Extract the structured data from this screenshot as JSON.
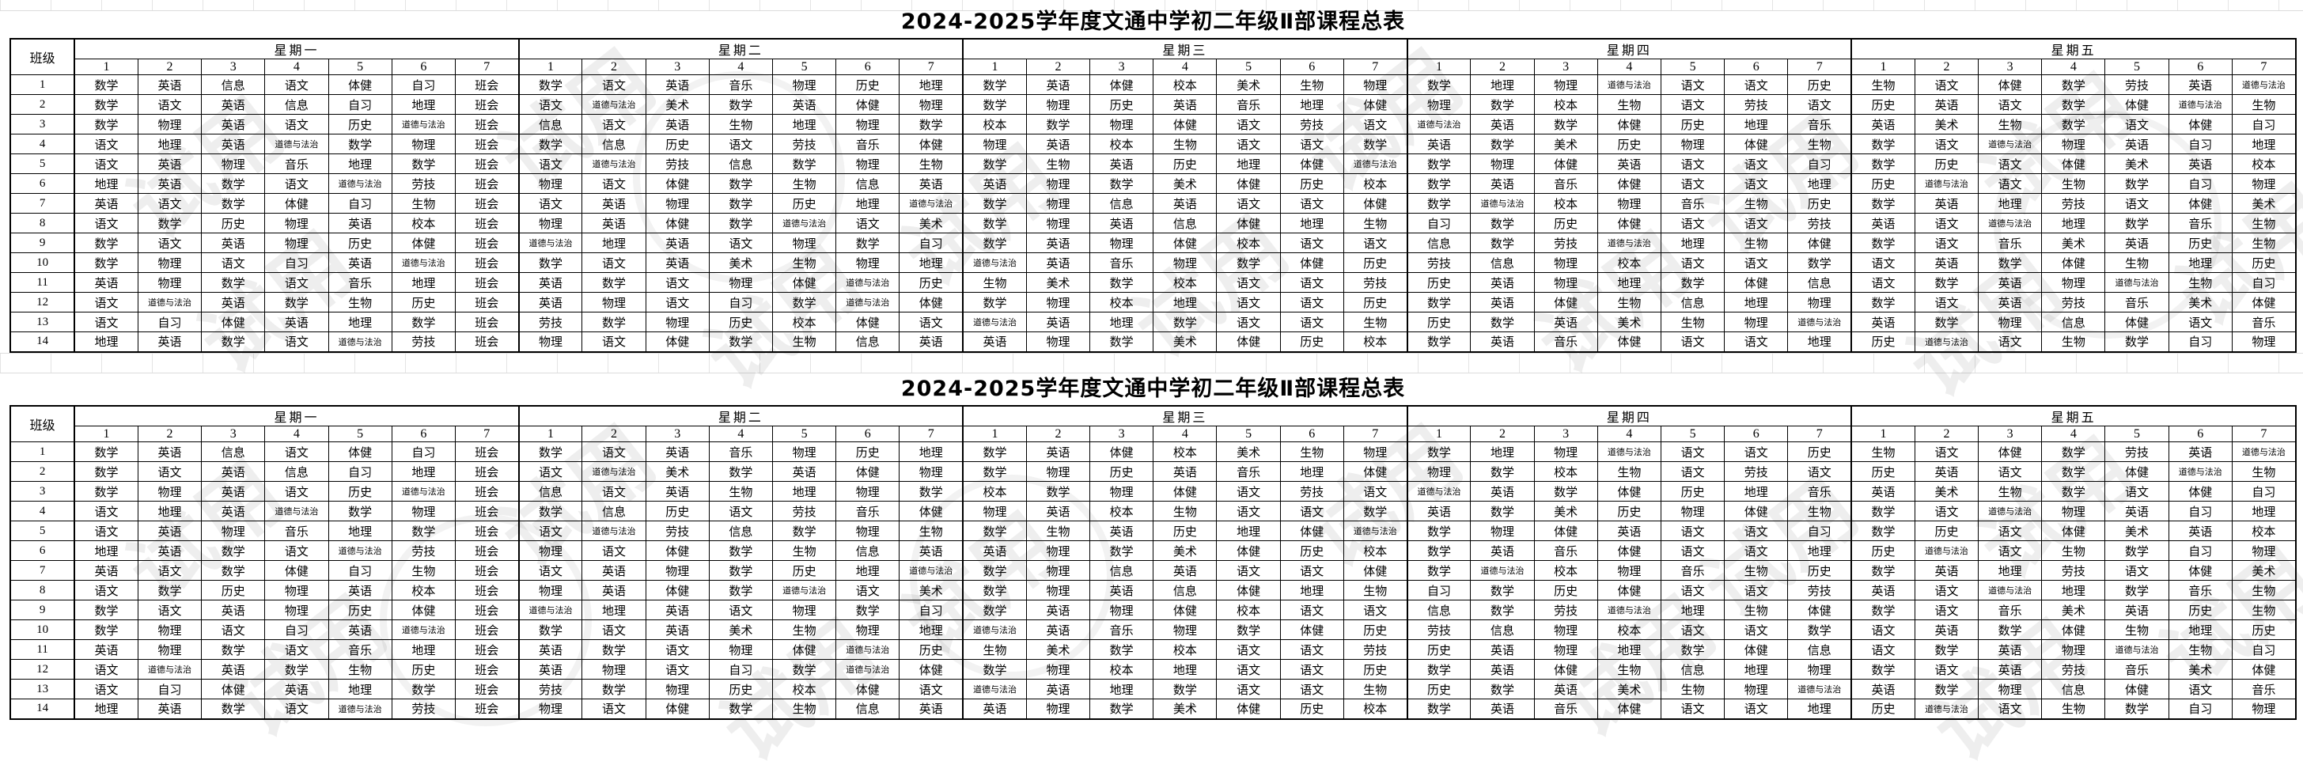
{
  "watermark_text": "试用",
  "tables": [
    {
      "title": "2024-2025学年度文通中学初二年级Ⅱ部课程总表"
    },
    {
      "title": "2024-2025学年度文通中学初二年级Ⅱ部课程总表"
    }
  ],
  "schedule": {
    "class_col_header": "班级",
    "days": [
      "星期一",
      "星期二",
      "星期三",
      "星期四",
      "星期五"
    ],
    "periods": [
      "1",
      "2",
      "3",
      "4",
      "5",
      "6",
      "7"
    ],
    "rows": [
      {
        "class_no": "1",
        "subjects": [
          "数学",
          "英语",
          "信息",
          "语文",
          "体健",
          "自习",
          "班会",
          "数学",
          "语文",
          "英语",
          "音乐",
          "物理",
          "历史",
          "地理",
          "数学",
          "英语",
          "体健",
          "校本",
          "美术",
          "生物",
          "物理",
          "数学",
          "地理",
          "物理",
          "道德与法治",
          "语文",
          "语文",
          "历史",
          "生物",
          "语文",
          "体健",
          "数学",
          "劳技",
          "英语",
          "道德与法治"
        ]
      },
      {
        "class_no": "2",
        "subjects": [
          "数学",
          "语文",
          "英语",
          "信息",
          "自习",
          "地理",
          "班会",
          "语文",
          "道德与法治",
          "美术",
          "数学",
          "英语",
          "体健",
          "物理",
          "数学",
          "物理",
          "历史",
          "英语",
          "音乐",
          "地理",
          "体健",
          "物理",
          "数学",
          "校本",
          "生物",
          "语文",
          "劳技",
          "语文",
          "历史",
          "英语",
          "语文",
          "数学",
          "体健",
          "道德与法治",
          "生物"
        ]
      },
      {
        "class_no": "3",
        "subjects": [
          "数学",
          "物理",
          "英语",
          "语文",
          "历史",
          "道德与法治",
          "班会",
          "信息",
          "语文",
          "英语",
          "生物",
          "地理",
          "物理",
          "数学",
          "校本",
          "数学",
          "物理",
          "体健",
          "语文",
          "劳技",
          "语文",
          "道德与法治",
          "英语",
          "数学",
          "体健",
          "历史",
          "地理",
          "音乐",
          "英语",
          "美术",
          "生物",
          "数学",
          "语文",
          "体健",
          "自习"
        ]
      },
      {
        "class_no": "4",
        "subjects": [
          "语文",
          "地理",
          "英语",
          "道德与法治",
          "数学",
          "物理",
          "班会",
          "数学",
          "信息",
          "历史",
          "语文",
          "劳技",
          "音乐",
          "体健",
          "物理",
          "英语",
          "校本",
          "生物",
          "语文",
          "语文",
          "数学",
          "英语",
          "数学",
          "美术",
          "历史",
          "物理",
          "体健",
          "生物",
          "数学",
          "语文",
          "道德与法治",
          "物理",
          "英语",
          "自习",
          "地理"
        ]
      },
      {
        "class_no": "5",
        "subjects": [
          "语文",
          "英语",
          "物理",
          "音乐",
          "地理",
          "数学",
          "班会",
          "语文",
          "道德与法治",
          "劳技",
          "信息",
          "数学",
          "物理",
          "生物",
          "数学",
          "生物",
          "英语",
          "历史",
          "地理",
          "体健",
          "道德与法治",
          "数学",
          "物理",
          "体健",
          "英语",
          "语文",
          "语文",
          "自习",
          "数学",
          "历史",
          "语文",
          "体健",
          "美术",
          "英语",
          "校本"
        ]
      },
      {
        "class_no": "6",
        "subjects": [
          "地理",
          "英语",
          "数学",
          "语文",
          "道德与法治",
          "劳技",
          "班会",
          "物理",
          "语文",
          "体健",
          "数学",
          "生物",
          "信息",
          "英语",
          "英语",
          "物理",
          "数学",
          "美术",
          "体健",
          "历史",
          "校本",
          "数学",
          "英语",
          "音乐",
          "体健",
          "语文",
          "语文",
          "地理",
          "历史",
          "道德与法治",
          "语文",
          "生物",
          "数学",
          "自习",
          "物理"
        ]
      },
      {
        "class_no": "7",
        "subjects": [
          "英语",
          "语文",
          "数学",
          "体健",
          "自习",
          "生物",
          "班会",
          "语文",
          "英语",
          "物理",
          "数学",
          "历史",
          "地理",
          "道德与法治",
          "数学",
          "物理",
          "信息",
          "英语",
          "语文",
          "语文",
          "体健",
          "数学",
          "道德与法治",
          "校本",
          "物理",
          "音乐",
          "生物",
          "历史",
          "数学",
          "英语",
          "地理",
          "劳技",
          "语文",
          "体健",
          "美术"
        ]
      },
      {
        "class_no": "8",
        "subjects": [
          "语文",
          "数学",
          "历史",
          "物理",
          "英语",
          "校本",
          "班会",
          "物理",
          "英语",
          "体健",
          "数学",
          "道德与法治",
          "语文",
          "美术",
          "数学",
          "物理",
          "英语",
          "信息",
          "体健",
          "地理",
          "生物",
          "自习",
          "数学",
          "历史",
          "体健",
          "语文",
          "语文",
          "劳技",
          "英语",
          "语文",
          "道德与法治",
          "地理",
          "数学",
          "音乐",
          "生物"
        ]
      },
      {
        "class_no": "9",
        "subjects": [
          "数学",
          "语文",
          "英语",
          "物理",
          "历史",
          "体健",
          "班会",
          "道德与法治",
          "地理",
          "英语",
          "语文",
          "物理",
          "数学",
          "自习",
          "数学",
          "英语",
          "物理",
          "体健",
          "校本",
          "语文",
          "语文",
          "信息",
          "数学",
          "劳技",
          "道德与法治",
          "地理",
          "生物",
          "体健",
          "数学",
          "语文",
          "音乐",
          "美术",
          "英语",
          "历史",
          "生物"
        ]
      },
      {
        "class_no": "10",
        "subjects": [
          "数学",
          "物理",
          "语文",
          "自习",
          "英语",
          "道德与法治",
          "班会",
          "数学",
          "语文",
          "英语",
          "美术",
          "生物",
          "物理",
          "地理",
          "道德与法治",
          "英语",
          "音乐",
          "物理",
          "数学",
          "体健",
          "历史",
          "劳技",
          "信息",
          "物理",
          "校本",
          "语文",
          "语文",
          "数学",
          "语文",
          "英语",
          "数学",
          "体健",
          "生物",
          "地理",
          "历史"
        ]
      },
      {
        "class_no": "11",
        "subjects": [
          "英语",
          "物理",
          "数学",
          "语文",
          "音乐",
          "地理",
          "班会",
          "英语",
          "数学",
          "语文",
          "物理",
          "体健",
          "道德与法治",
          "历史",
          "生物",
          "美术",
          "数学",
          "校本",
          "语文",
          "语文",
          "劳技",
          "历史",
          "英语",
          "物理",
          "地理",
          "数学",
          "体健",
          "信息",
          "语文",
          "数学",
          "英语",
          "物理",
          "道德与法治",
          "生物",
          "自习"
        ]
      },
      {
        "class_no": "12",
        "subjects": [
          "语文",
          "道德与法治",
          "英语",
          "数学",
          "生物",
          "历史",
          "班会",
          "英语",
          "物理",
          "语文",
          "自习",
          "数学",
          "道德与法治",
          "体健",
          "数学",
          "物理",
          "校本",
          "地理",
          "语文",
          "语文",
          "历史",
          "数学",
          "英语",
          "体健",
          "生物",
          "信息",
          "地理",
          "物理",
          "数学",
          "语文",
          "英语",
          "劳技",
          "音乐",
          "美术",
          "体健"
        ]
      },
      {
        "class_no": "13",
        "subjects": [
          "语文",
          "自习",
          "体健",
          "英语",
          "地理",
          "数学",
          "班会",
          "劳技",
          "数学",
          "物理",
          "历史",
          "校本",
          "体健",
          "语文",
          "道德与法治",
          "英语",
          "地理",
          "数学",
          "语文",
          "语文",
          "生物",
          "历史",
          "数学",
          "英语",
          "美术",
          "生物",
          "物理",
          "道德与法治",
          "英语",
          "数学",
          "物理",
          "信息",
          "体健",
          "语文",
          "音乐"
        ]
      },
      {
        "class_no": "14",
        "subjects": [
          "地理",
          "英语",
          "数学",
          "语文",
          "道德与法治",
          "劳技",
          "班会",
          "物理",
          "语文",
          "体健",
          "数学",
          "生物",
          "信息",
          "英语",
          "英语",
          "物理",
          "数学",
          "美术",
          "体健",
          "历史",
          "校本",
          "数学",
          "英语",
          "音乐",
          "体健",
          "语文",
          "语文",
          "地理",
          "历史",
          "道德与法治",
          "语文",
          "生物",
          "数学",
          "自习",
          "物理"
        ]
      }
    ]
  }
}
